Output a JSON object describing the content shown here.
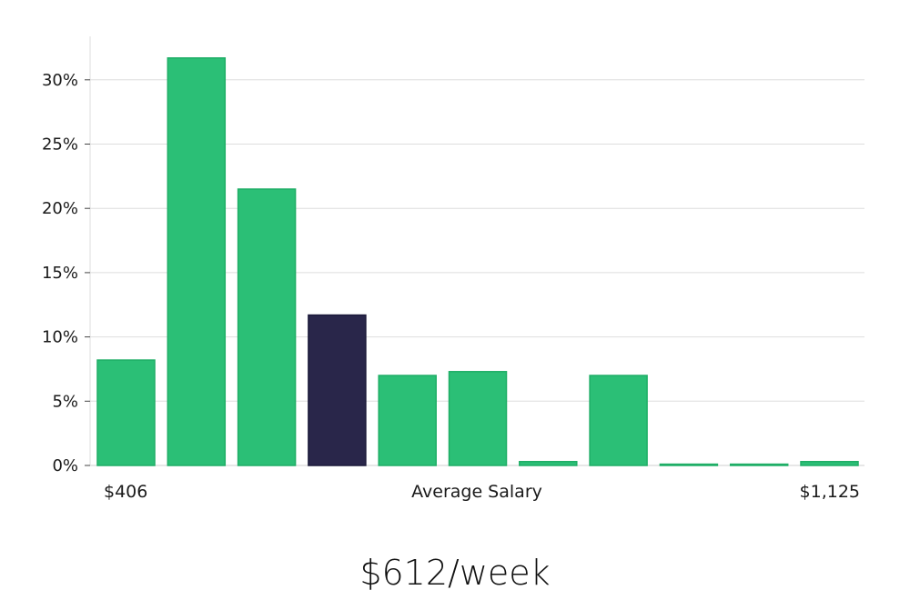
{
  "chart_data": {
    "type": "bar",
    "values": [
      8.2,
      31.7,
      21.5,
      11.7,
      7.0,
      7.3,
      0.3,
      7.0,
      0.1,
      0.1,
      0.3
    ],
    "highlight_index": 3,
    "ylim": [
      0,
      33
    ],
    "y_ticks": [
      0,
      5,
      10,
      15,
      20,
      25,
      30
    ],
    "y_tick_labels": [
      "0%",
      "5%",
      "10%",
      "15%",
      "20%",
      "25%",
      "30%"
    ],
    "x_labels": {
      "left": "$406",
      "center": "Average Salary",
      "right": "$1,125"
    },
    "grid": true,
    "colors": {
      "bar": "#2bbf76",
      "bar_edge": "#1fae66",
      "highlight": "#29264a",
      "highlight_edge": "#1c1a3a",
      "grid": "#dedede",
      "axis": "#cfcfcf"
    }
  },
  "headline": "$612/week"
}
